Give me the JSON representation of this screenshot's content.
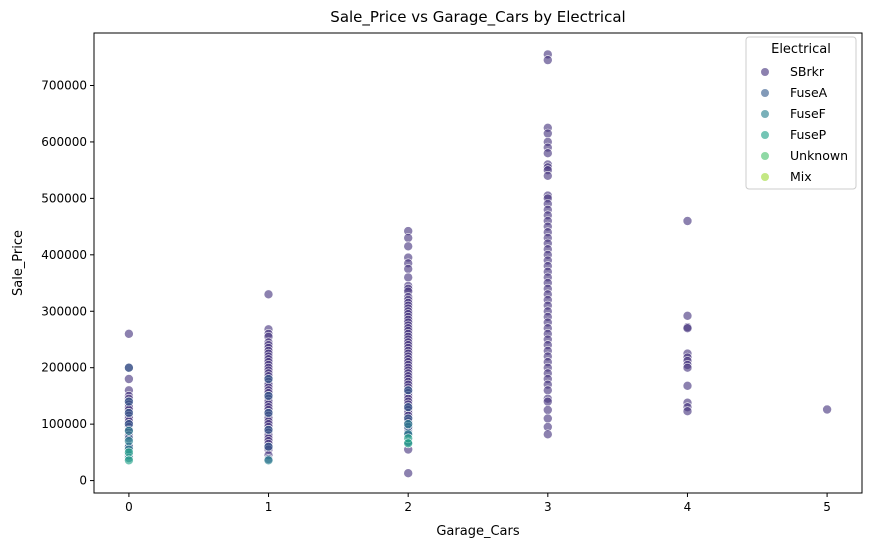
{
  "chart_data": {
    "type": "scatter",
    "title": "Sale_Price vs Garage_Cars by Electrical",
    "xlabel": "Garage_Cars",
    "ylabel": "Sale_Price",
    "xlim": [
      -0.25,
      5.25
    ],
    "ylim": [
      -22000,
      793000
    ],
    "xticks": [
      0,
      1,
      2,
      3,
      4,
      5
    ],
    "yticks": [
      0,
      100000,
      200000,
      300000,
      400000,
      500000,
      600000,
      700000
    ],
    "grid": false,
    "legend": {
      "title": "Electrical",
      "placement": "top-right"
    },
    "series": [
      {
        "name": "SBrkr",
        "color": "#46337e",
        "points": [
          [
            0,
            260000
          ],
          [
            0,
            200000
          ],
          [
            0,
            180000
          ],
          [
            0,
            160000
          ],
          [
            0,
            150000
          ],
          [
            0,
            145000
          ],
          [
            0,
            140000
          ],
          [
            0,
            135000
          ],
          [
            0,
            130000
          ],
          [
            0,
            125000
          ],
          [
            0,
            120000
          ],
          [
            0,
            115000
          ],
          [
            0,
            110000
          ],
          [
            0,
            105000
          ],
          [
            0,
            100000
          ],
          [
            0,
            95000
          ],
          [
            0,
            90000
          ],
          [
            0,
            80000
          ],
          [
            0,
            60000
          ],
          [
            1,
            330000
          ],
          [
            1,
            268000
          ],
          [
            1,
            260000
          ],
          [
            1,
            255000
          ],
          [
            1,
            245000
          ],
          [
            1,
            240000
          ],
          [
            1,
            235000
          ],
          [
            1,
            230000
          ],
          [
            1,
            225000
          ],
          [
            1,
            220000
          ],
          [
            1,
            215000
          ],
          [
            1,
            210000
          ],
          [
            1,
            205000
          ],
          [
            1,
            200000
          ],
          [
            1,
            195000
          ],
          [
            1,
            190000
          ],
          [
            1,
            185000
          ],
          [
            1,
            180000
          ],
          [
            1,
            175000
          ],
          [
            1,
            170000
          ],
          [
            1,
            165000
          ],
          [
            1,
            160000
          ],
          [
            1,
            155000
          ],
          [
            1,
            150000
          ],
          [
            1,
            145000
          ],
          [
            1,
            140000
          ],
          [
            1,
            135000
          ],
          [
            1,
            130000
          ],
          [
            1,
            125000
          ],
          [
            1,
            120000
          ],
          [
            1,
            115000
          ],
          [
            1,
            110000
          ],
          [
            1,
            105000
          ],
          [
            1,
            100000
          ],
          [
            1,
            95000
          ],
          [
            1,
            90000
          ],
          [
            1,
            85000
          ],
          [
            1,
            80000
          ],
          [
            1,
            75000
          ],
          [
            1,
            70000
          ],
          [
            1,
            65000
          ],
          [
            1,
            60000
          ],
          [
            1,
            55000
          ],
          [
            1,
            45000
          ],
          [
            2,
            442000
          ],
          [
            2,
            430000
          ],
          [
            2,
            415000
          ],
          [
            2,
            395000
          ],
          [
            2,
            385000
          ],
          [
            2,
            375000
          ],
          [
            2,
            360000
          ],
          [
            2,
            345000
          ],
          [
            2,
            340000
          ],
          [
            2,
            335000
          ],
          [
            2,
            325000
          ],
          [
            2,
            320000
          ],
          [
            2,
            315000
          ],
          [
            2,
            310000
          ],
          [
            2,
            305000
          ],
          [
            2,
            300000
          ],
          [
            2,
            295000
          ],
          [
            2,
            290000
          ],
          [
            2,
            285000
          ],
          [
            2,
            280000
          ],
          [
            2,
            275000
          ],
          [
            2,
            270000
          ],
          [
            2,
            265000
          ],
          [
            2,
            260000
          ],
          [
            2,
            255000
          ],
          [
            2,
            250000
          ],
          [
            2,
            245000
          ],
          [
            2,
            240000
          ],
          [
            2,
            235000
          ],
          [
            2,
            230000
          ],
          [
            2,
            225000
          ],
          [
            2,
            220000
          ],
          [
            2,
            215000
          ],
          [
            2,
            210000
          ],
          [
            2,
            205000
          ],
          [
            2,
            200000
          ],
          [
            2,
            195000
          ],
          [
            2,
            190000
          ],
          [
            2,
            185000
          ],
          [
            2,
            180000
          ],
          [
            2,
            175000
          ],
          [
            2,
            170000
          ],
          [
            2,
            165000
          ],
          [
            2,
            160000
          ],
          [
            2,
            155000
          ],
          [
            2,
            150000
          ],
          [
            2,
            145000
          ],
          [
            2,
            140000
          ],
          [
            2,
            135000
          ],
          [
            2,
            130000
          ],
          [
            2,
            125000
          ],
          [
            2,
            120000
          ],
          [
            2,
            115000
          ],
          [
            2,
            110000
          ],
          [
            2,
            105000
          ],
          [
            2,
            100000
          ],
          [
            2,
            90000
          ],
          [
            2,
            80000
          ],
          [
            2,
            70000
          ],
          [
            2,
            55000
          ],
          [
            2,
            13000
          ],
          [
            3,
            755000
          ],
          [
            3,
            745000
          ],
          [
            3,
            625000
          ],
          [
            3,
            615000
          ],
          [
            3,
            600000
          ],
          [
            3,
            590000
          ],
          [
            3,
            580000
          ],
          [
            3,
            560000
          ],
          [
            3,
            555000
          ],
          [
            3,
            550000
          ],
          [
            3,
            540000
          ],
          [
            3,
            505000
          ],
          [
            3,
            500000
          ],
          [
            3,
            490000
          ],
          [
            3,
            480000
          ],
          [
            3,
            470000
          ],
          [
            3,
            460000
          ],
          [
            3,
            450000
          ],
          [
            3,
            440000
          ],
          [
            3,
            430000
          ],
          [
            3,
            420000
          ],
          [
            3,
            410000
          ],
          [
            3,
            400000
          ],
          [
            3,
            390000
          ],
          [
            3,
            380000
          ],
          [
            3,
            370000
          ],
          [
            3,
            360000
          ],
          [
            3,
            350000
          ],
          [
            3,
            340000
          ],
          [
            3,
            330000
          ],
          [
            3,
            320000
          ],
          [
            3,
            310000
          ],
          [
            3,
            300000
          ],
          [
            3,
            290000
          ],
          [
            3,
            280000
          ],
          [
            3,
            270000
          ],
          [
            3,
            260000
          ],
          [
            3,
            250000
          ],
          [
            3,
            240000
          ],
          [
            3,
            230000
          ],
          [
            3,
            220000
          ],
          [
            3,
            210000
          ],
          [
            3,
            200000
          ],
          [
            3,
            190000
          ],
          [
            3,
            180000
          ],
          [
            3,
            170000
          ],
          [
            3,
            160000
          ],
          [
            3,
            145000
          ],
          [
            3,
            140000
          ],
          [
            3,
            125000
          ],
          [
            3,
            110000
          ],
          [
            3,
            95000
          ],
          [
            3,
            82000
          ],
          [
            4,
            460000
          ],
          [
            4,
            292000
          ],
          [
            4,
            272000
          ],
          [
            4,
            270000
          ],
          [
            4,
            225000
          ],
          [
            4,
            218000
          ],
          [
            4,
            212000
          ],
          [
            4,
            205000
          ],
          [
            4,
            200000
          ],
          [
            4,
            168000
          ],
          [
            4,
            138000
          ],
          [
            4,
            130000
          ],
          [
            4,
            123000
          ],
          [
            5,
            126000
          ]
        ]
      },
      {
        "name": "FuseA",
        "color": "#365c8d",
        "points": [
          [
            0,
            200000
          ],
          [
            0,
            140000
          ],
          [
            0,
            120000
          ],
          [
            0,
            100000
          ],
          [
            0,
            75000
          ],
          [
            0,
            60000
          ],
          [
            0,
            45000
          ],
          [
            1,
            180000
          ],
          [
            1,
            150000
          ],
          [
            1,
            120000
          ],
          [
            1,
            90000
          ],
          [
            1,
            60000
          ],
          [
            1,
            38000
          ],
          [
            2,
            160000
          ],
          [
            2,
            130000
          ],
          [
            2,
            110000
          ],
          [
            2,
            95000
          ],
          [
            2,
            85000
          ]
        ]
      },
      {
        "name": "FuseF",
        "color": "#277f8e",
        "points": [
          [
            0,
            88000
          ],
          [
            0,
            70000
          ],
          [
            0,
            55000
          ],
          [
            0,
            40000
          ],
          [
            1,
            36000
          ],
          [
            2,
            100000
          ],
          [
            2,
            82000
          ],
          [
            2,
            68000
          ]
        ]
      },
      {
        "name": "FuseP",
        "color": "#1fa187",
        "points": [
          [
            0,
            50000
          ],
          [
            0,
            36000
          ],
          [
            2,
            75000
          ],
          [
            2,
            66000
          ]
        ]
      },
      {
        "name": "Unknown",
        "color": "#4ac16d",
        "points": []
      },
      {
        "name": "Mix",
        "color": "#a0da39",
        "points": []
      }
    ]
  }
}
